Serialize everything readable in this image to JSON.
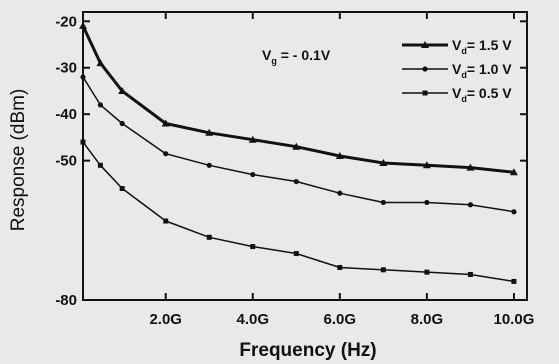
{
  "chart_data": {
    "type": "line",
    "title": "",
    "xlabel": "Frequency (Hz)",
    "ylabel": "Response (dBm)",
    "xlim": [
      0.1,
      10.3
    ],
    "ylim": [
      -80,
      -18
    ],
    "x_ticks": [
      {
        "value": 2,
        "label": "2.0G"
      },
      {
        "value": 4,
        "label": "4.0G"
      },
      {
        "value": 6,
        "label": "6.0G"
      },
      {
        "value": 8,
        "label": "8.0G"
      },
      {
        "value": 10,
        "label": "10.0G"
      }
    ],
    "y_ticks": [
      {
        "value": -20,
        "label": "-20"
      },
      {
        "value": -30,
        "label": "-30"
      },
      {
        "value": -40,
        "label": "-40"
      },
      {
        "value": -50,
        "label": "-50"
      },
      {
        "value": -80,
        "label": "-80"
      }
    ],
    "grid": false,
    "legend_position": "top-right",
    "annotation": {
      "prefix": "V",
      "subscript": "g",
      "suffix": " = - 0.1V"
    },
    "x": [
      0.1,
      0.5,
      1.0,
      2.0,
      3.0,
      4.0,
      5.0,
      6.0,
      7.0,
      8.0,
      9.0,
      10.0
    ],
    "series": [
      {
        "name_prefix": "V",
        "name_subscript": "d",
        "name_suffix": "= 1.5 V",
        "marker": "triangle",
        "line_width": 3,
        "values": [
          -21,
          -29,
          -35,
          -42,
          -44,
          -45.5,
          -47,
          -49,
          -50.5,
          -51,
          -51.5,
          -52.5
        ]
      },
      {
        "name_prefix": "V",
        "name_subscript": "d",
        "name_suffix": "= 1.0 V",
        "marker": "circle",
        "line_width": 1.5,
        "values": [
          -32,
          -38,
          -42,
          -48.5,
          -51,
          -53,
          -54.5,
          -57,
          -59,
          -59,
          -59.5,
          -61
        ]
      },
      {
        "name_prefix": "V",
        "name_subscript": "d",
        "name_suffix": "= 0.5 V",
        "marker": "square",
        "line_width": 1.5,
        "values": [
          -46,
          -51,
          -56,
          -63,
          -66.5,
          -68.5,
          -70,
          -73,
          -73.5,
          -74,
          -74.5,
          -76
        ]
      }
    ]
  }
}
